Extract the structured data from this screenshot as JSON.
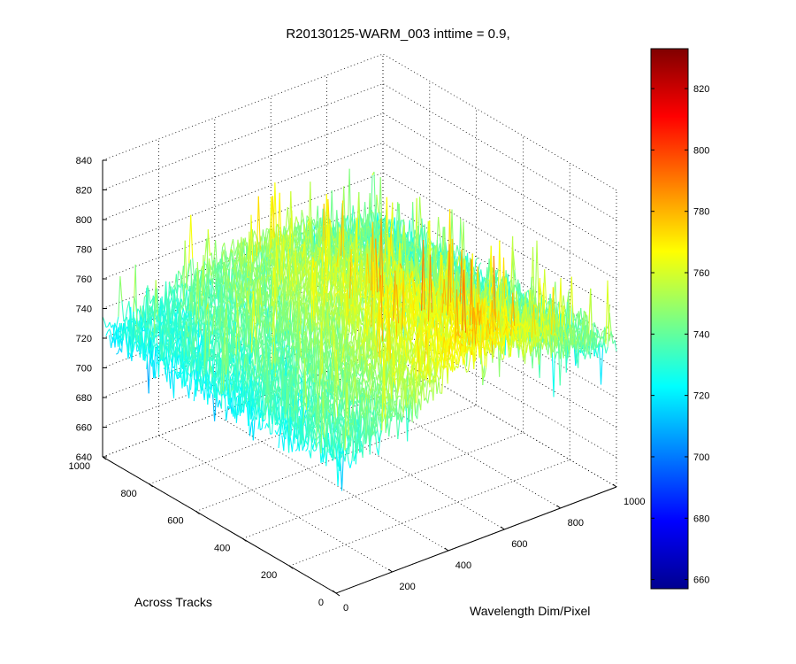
{
  "chart_data": {
    "type": "surface3d",
    "title": "R20130125-WARM_003 inttime = 0.9,",
    "xlabel": "Wavelength Dim/Pixel",
    "ylabel": "Across Tracks",
    "zlabel": "",
    "x_ticks": [
      "0",
      "200",
      "400",
      "600",
      "800",
      "1000"
    ],
    "y_ticks": [
      "0",
      "200",
      "400",
      "600",
      "800",
      "1000"
    ],
    "z_ticks": [
      "640",
      "660",
      "680",
      "700",
      "720",
      "740",
      "760",
      "780",
      "800",
      "820",
      "840"
    ],
    "xlim": [
      0,
      1000
    ],
    "ylim": [
      0,
      1000
    ],
    "zlim": [
      640,
      840
    ],
    "colorbar": {
      "range": [
        657,
        833
      ],
      "ticks": [
        "660",
        "680",
        "700",
        "720",
        "740",
        "760",
        "780",
        "800",
        "820"
      ],
      "colormap": "jet"
    },
    "grid": true,
    "surface_trend": {
      "description_values": "mean level ~725 at far edge rising to ~765 near wavelength 600, with noise spikes spanning ~670 to ~830"
    }
  }
}
